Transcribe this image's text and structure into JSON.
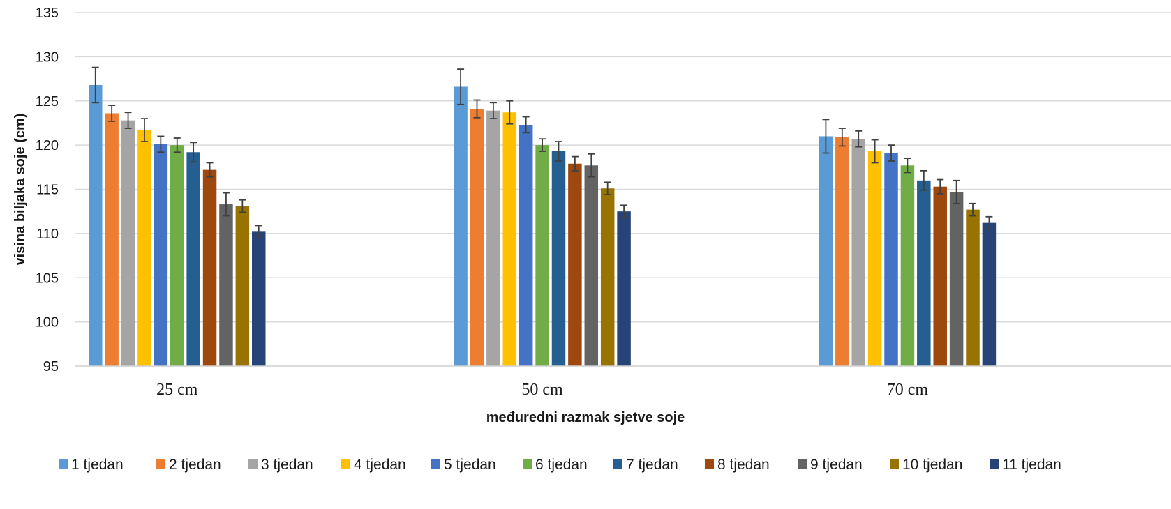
{
  "chart_data": {
    "type": "bar",
    "title": "",
    "xlabel": "međuredni razmak sjetve soje",
    "ylabel": "visina biljaka soje (cm)",
    "ylim": [
      95,
      135
    ],
    "yticks": [
      95,
      100,
      105,
      110,
      115,
      120,
      125,
      130,
      135
    ],
    "grid": true,
    "legend_position": "bottom",
    "error_bars": true,
    "categories": [
      "25 cm",
      "50 cm",
      "70 cm"
    ],
    "series": [
      {
        "name": "1 tjedan",
        "color": "#5B9BD5",
        "values": [
          126.8,
          126.6,
          121.0
        ],
        "errors": [
          2.0,
          2.0,
          1.9
        ]
      },
      {
        "name": "2 tjedan",
        "color": "#ED7D31",
        "values": [
          123.6,
          124.1,
          120.9
        ],
        "errors": [
          0.9,
          1.0,
          1.0
        ]
      },
      {
        "name": "3 tjedan",
        "color": "#A5A5A5",
        "values": [
          122.8,
          123.9,
          120.7
        ],
        "errors": [
          0.9,
          0.9,
          0.9
        ]
      },
      {
        "name": "4 tjedan",
        "color": "#FFC000",
        "values": [
          121.7,
          123.7,
          119.3
        ],
        "errors": [
          1.3,
          1.3,
          1.3
        ]
      },
      {
        "name": "5 tjedan",
        "color": "#4472C4",
        "values": [
          120.1,
          122.3,
          119.1
        ],
        "errors": [
          0.9,
          0.9,
          0.9
        ]
      },
      {
        "name": "6 tjedan",
        "color": "#70AD47",
        "values": [
          120.0,
          120.0,
          117.7
        ],
        "errors": [
          0.8,
          0.7,
          0.8
        ]
      },
      {
        "name": "7 tjedan",
        "color": "#255E91",
        "values": [
          119.2,
          119.3,
          116.0
        ],
        "errors": [
          1.1,
          1.1,
          1.1
        ]
      },
      {
        "name": "8 tjedan",
        "color": "#9E480E",
        "values": [
          117.2,
          117.9,
          115.3
        ],
        "errors": [
          0.8,
          0.8,
          0.8
        ]
      },
      {
        "name": "9 tjedan",
        "color": "#636363",
        "values": [
          113.3,
          117.7,
          114.7
        ],
        "errors": [
          1.3,
          1.3,
          1.3
        ]
      },
      {
        "name": "10 tjedan",
        "color": "#997300",
        "values": [
          113.1,
          115.1,
          112.7
        ],
        "errors": [
          0.7,
          0.7,
          0.7
        ]
      },
      {
        "name": "11 tjedan",
        "color": "#264478",
        "values": [
          110.2,
          112.5,
          111.2
        ],
        "errors": [
          0.7,
          0.7,
          0.7
        ]
      }
    ]
  }
}
